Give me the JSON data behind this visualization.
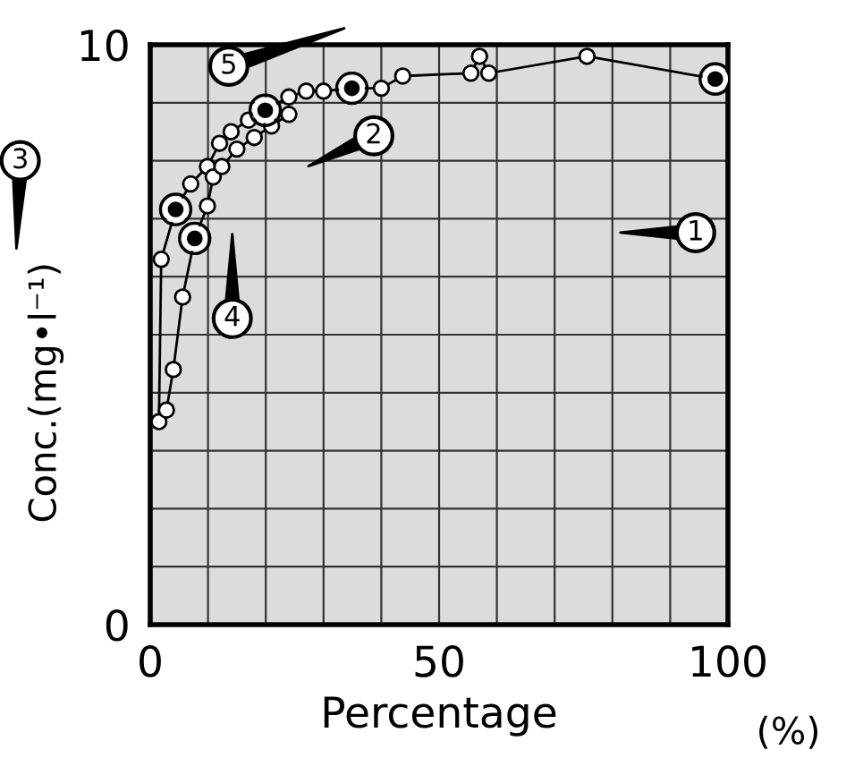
{
  "chart_data": {
    "type": "line",
    "xlabel": "Percentage",
    "ylabel": "Conc.(mg•l⁻¹)",
    "xlim": [
      0,
      100
    ],
    "ylim": [
      0,
      10
    ],
    "xticks": [
      0,
      {
        "value": 10,
        "label": null
      },
      {
        "value": 20,
        "label": null
      },
      {
        "value": 30,
        "label": null
      },
      {
        "value": 40,
        "label": null
      },
      50,
      {
        "value": 60,
        "label": null
      },
      {
        "value": 70,
        "label": null
      },
      {
        "value": 80,
        "label": null
      },
      {
        "value": 90,
        "label": null
      },
      100
    ],
    "yticks": [
      0,
      {
        "value": 1,
        "label": null
      },
      {
        "value": 2,
        "label": null
      },
      {
        "value": 3,
        "label": null
      },
      {
        "value": 4,
        "label": null
      },
      {
        "value": 5,
        "label": null
      },
      {
        "value": 6,
        "label": null
      },
      {
        "value": 7,
        "label": null
      },
      {
        "value": 8,
        "label": null
      },
      {
        "value": 9,
        "label": null
      },
      10
    ],
    "grid": true,
    "marker": "circle",
    "line_style": "solid",
    "series": [
      {
        "color": "#000000",
        "x": [
          1.5,
          1.9,
          4.4,
          7,
          9.9,
          12,
          14,
          17,
          19.9,
          24,
          27,
          30,
          34.9,
          40,
          43.7,
          55.5,
          57,
          58.6,
          75.6,
          97.8
        ],
        "values": [
          3.5,
          6.3,
          7.16,
          7.6,
          7.9,
          8.3,
          8.5,
          8.7,
          8.87,
          9.1,
          9.2,
          9.2,
          9.25,
          9.25,
          9.46,
          9.51,
          9.8,
          9.51,
          9.8,
          9.41
        ]
      },
      {
        "color": "#000000",
        "x": [
          2.8,
          4.0,
          5.6,
          7.7,
          9.9,
          10.9,
          12.4,
          15,
          18,
          21,
          24
        ],
        "values": [
          3.7,
          4.4,
          5.65,
          6.66,
          7.22,
          7.72,
          7.9,
          8.2,
          8.4,
          8.6,
          8.8
        ]
      },
      {
        "type": "scatter",
        "color": "#000000",
        "x": [
          97.8,
          34.9,
          4.4,
          7.7,
          19.9
        ],
        "values": [
          9.41,
          9.25,
          7.16,
          6.66,
          8.87
        ]
      }
    ],
    "annotations": [
      "1",
      "2",
      "3",
      "4",
      "5",
      "(%)"
    ]
  }
}
